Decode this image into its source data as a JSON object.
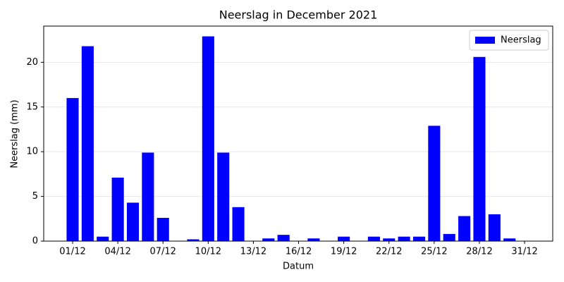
{
  "chart_data": {
    "type": "bar",
    "title": "Neerslag in December 2021",
    "x_label": "Datum",
    "y_label": "Neerslag (mm)",
    "categories": [
      "01/12",
      null,
      null,
      "04/12",
      null,
      null,
      "07/12",
      null,
      null,
      "10/12",
      null,
      null,
      "13/12",
      null,
      null,
      "16/12",
      null,
      null,
      "19/12",
      null,
      null,
      "22/12",
      null,
      null,
      "25/12",
      null,
      null,
      "28/12",
      null,
      null,
      "31/12"
    ],
    "series": [
      {
        "name": "Neerslag",
        "color": "#0000ff",
        "values": [
          16.0,
          21.8,
          0.5,
          7.1,
          4.3,
          9.9,
          2.6,
          0,
          0.2,
          22.9,
          9.9,
          3.8,
          0,
          0.3,
          0.7,
          0,
          0.3,
          0,
          0.5,
          0,
          0.5,
          0.3,
          0.5,
          0.5,
          12.9,
          0.8,
          2.8,
          20.6,
          3.0,
          0.3,
          0
        ]
      }
    ],
    "ylim": [
      0,
      24.05
    ],
    "yticks": [
      0,
      5,
      10,
      15,
      20
    ],
    "grid": true,
    "legend": "upper right"
  }
}
